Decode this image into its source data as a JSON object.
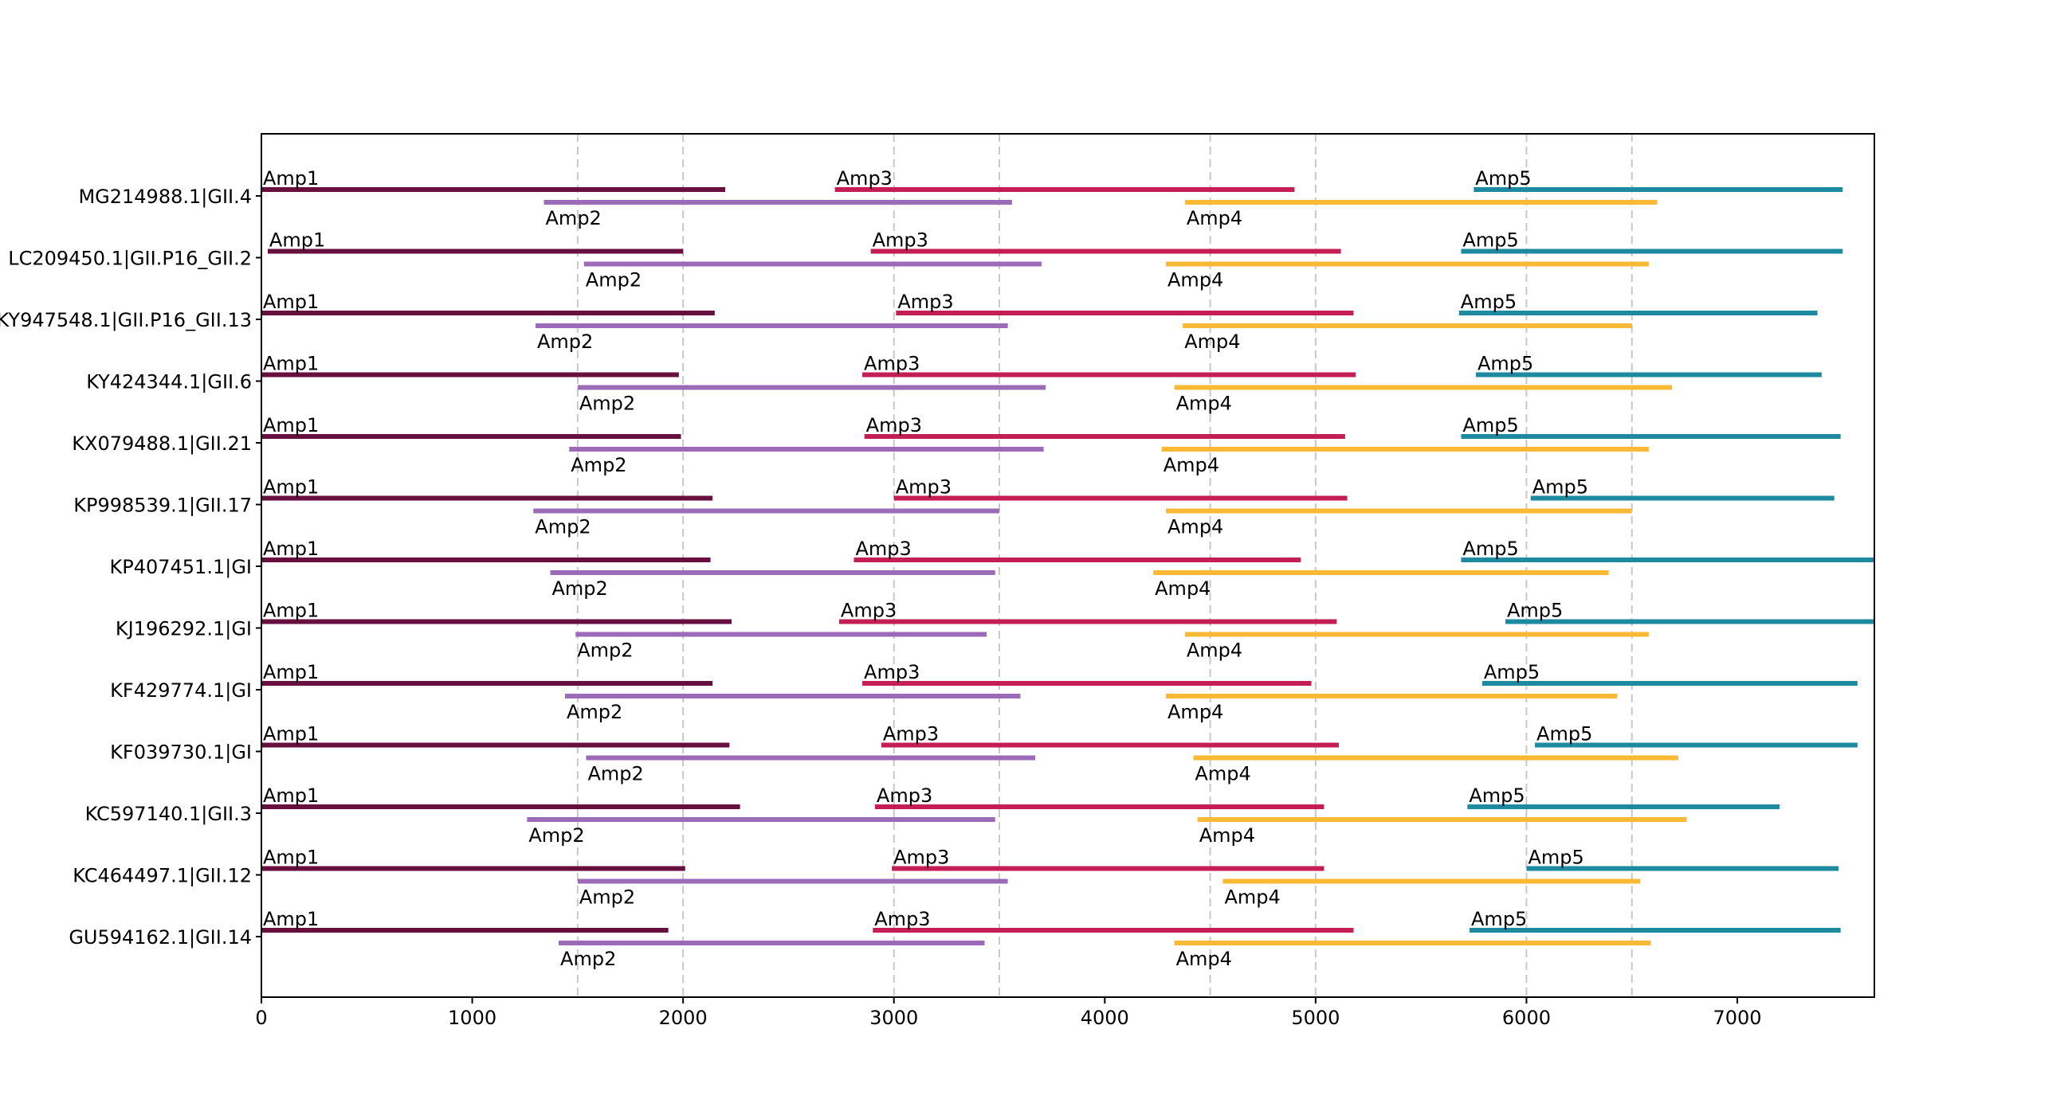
{
  "chart_data": {
    "type": "gantt",
    "xlim": [
      0,
      7650
    ],
    "x_ticks": [
      0,
      1000,
      2000,
      3000,
      4000,
      5000,
      6000,
      7000
    ],
    "vgrid": [
      1500,
      2000,
      3000,
      3500,
      4500,
      5000,
      6000,
      6500
    ],
    "grid": "vertical dashed",
    "amplicon_colors": {
      "Amp1": "#67103f",
      "Amp2": "#9c6bb8",
      "Amp3": "#c51e55",
      "Amp4": "#f9b935",
      "Amp5": "#1e8aa0"
    },
    "rows": [
      {
        "label": "MG214988.1|GII.4",
        "amplicons": [
          {
            "name": "Amp1",
            "start": 0,
            "end": 2200
          },
          {
            "name": "Amp2",
            "start": 1340,
            "end": 3560
          },
          {
            "name": "Amp3",
            "start": 2720,
            "end": 4900
          },
          {
            "name": "Amp4",
            "start": 4380,
            "end": 6620
          },
          {
            "name": "Amp5",
            "start": 5750,
            "end": 7500
          }
        ]
      },
      {
        "label": "LC209450.1|GII.P16_GII.2",
        "amplicons": [
          {
            "name": "Amp1",
            "start": 30,
            "end": 2000
          },
          {
            "name": "Amp2",
            "start": 1530,
            "end": 3700
          },
          {
            "name": "Amp3",
            "start": 2890,
            "end": 5120
          },
          {
            "name": "Amp4",
            "start": 4290,
            "end": 6580
          },
          {
            "name": "Amp5",
            "start": 5690,
            "end": 7500
          }
        ]
      },
      {
        "label": "KY947548.1|GII.P16_GII.13",
        "amplicons": [
          {
            "name": "Amp1",
            "start": 0,
            "end": 2150
          },
          {
            "name": "Amp2",
            "start": 1300,
            "end": 3540
          },
          {
            "name": "Amp3",
            "start": 3010,
            "end": 5180
          },
          {
            "name": "Amp4",
            "start": 4370,
            "end": 6500
          },
          {
            "name": "Amp5",
            "start": 5680,
            "end": 7380
          }
        ]
      },
      {
        "label": "KY424344.1|GII.6",
        "amplicons": [
          {
            "name": "Amp1",
            "start": 0,
            "end": 1980
          },
          {
            "name": "Amp2",
            "start": 1500,
            "end": 3720
          },
          {
            "name": "Amp3",
            "start": 2850,
            "end": 5190
          },
          {
            "name": "Amp4",
            "start": 4330,
            "end": 6690
          },
          {
            "name": "Amp5",
            "start": 5760,
            "end": 7400
          }
        ]
      },
      {
        "label": "KX079488.1|GII.21",
        "amplicons": [
          {
            "name": "Amp1",
            "start": 0,
            "end": 1990
          },
          {
            "name": "Amp2",
            "start": 1460,
            "end": 3710
          },
          {
            "name": "Amp3",
            "start": 2860,
            "end": 5140
          },
          {
            "name": "Amp4",
            "start": 4270,
            "end": 6580
          },
          {
            "name": "Amp5",
            "start": 5690,
            "end": 7490
          }
        ]
      },
      {
        "label": "KP998539.1|GII.17",
        "amplicons": [
          {
            "name": "Amp1",
            "start": 0,
            "end": 2140
          },
          {
            "name": "Amp2",
            "start": 1290,
            "end": 3500
          },
          {
            "name": "Amp3",
            "start": 3000,
            "end": 5150
          },
          {
            "name": "Amp4",
            "start": 4290,
            "end": 6500
          },
          {
            "name": "Amp5",
            "start": 6020,
            "end": 7460
          }
        ]
      },
      {
        "label": "KP407451.1|GI",
        "amplicons": [
          {
            "name": "Amp1",
            "start": 0,
            "end": 2130
          },
          {
            "name": "Amp2",
            "start": 1370,
            "end": 3480
          },
          {
            "name": "Amp3",
            "start": 2810,
            "end": 4930
          },
          {
            "name": "Amp4",
            "start": 4230,
            "end": 6390
          },
          {
            "name": "Amp5",
            "start": 5690,
            "end": 7650
          }
        ]
      },
      {
        "label": "KJ196292.1|GI",
        "amplicons": [
          {
            "name": "Amp1",
            "start": 0,
            "end": 2230
          },
          {
            "name": "Amp2",
            "start": 1490,
            "end": 3440
          },
          {
            "name": "Amp3",
            "start": 2740,
            "end": 5100
          },
          {
            "name": "Amp4",
            "start": 4380,
            "end": 6580
          },
          {
            "name": "Amp5",
            "start": 5900,
            "end": 7650
          }
        ]
      },
      {
        "label": "KF429774.1|GI",
        "amplicons": [
          {
            "name": "Amp1",
            "start": 0,
            "end": 2140
          },
          {
            "name": "Amp2",
            "start": 1440,
            "end": 3600
          },
          {
            "name": "Amp3",
            "start": 2850,
            "end": 4980
          },
          {
            "name": "Amp4",
            "start": 4290,
            "end": 6430
          },
          {
            "name": "Amp5",
            "start": 5790,
            "end": 7570
          }
        ]
      },
      {
        "label": "KF039730.1|GI",
        "amplicons": [
          {
            "name": "Amp1",
            "start": 0,
            "end": 2220
          },
          {
            "name": "Amp2",
            "start": 1540,
            "end": 3670
          },
          {
            "name": "Amp3",
            "start": 2940,
            "end": 5110
          },
          {
            "name": "Amp4",
            "start": 4420,
            "end": 6720
          },
          {
            "name": "Amp5",
            "start": 6040,
            "end": 7570
          }
        ]
      },
      {
        "label": "KC597140.1|GII.3",
        "amplicons": [
          {
            "name": "Amp1",
            "start": 0,
            "end": 2270
          },
          {
            "name": "Amp2",
            "start": 1260,
            "end": 3480
          },
          {
            "name": "Amp3",
            "start": 2910,
            "end": 5040
          },
          {
            "name": "Amp4",
            "start": 4440,
            "end": 6760
          },
          {
            "name": "Amp5",
            "start": 5720,
            "end": 7200
          }
        ]
      },
      {
        "label": "KC464497.1|GII.12",
        "amplicons": [
          {
            "name": "Amp1",
            "start": 0,
            "end": 2010
          },
          {
            "name": "Amp2",
            "start": 1500,
            "end": 3540
          },
          {
            "name": "Amp3",
            "start": 2990,
            "end": 5040
          },
          {
            "name": "Amp4",
            "start": 4560,
            "end": 6540
          },
          {
            "name": "Amp5",
            "start": 6000,
            "end": 7480
          }
        ]
      },
      {
        "label": "GU594162.1|GII.14",
        "amplicons": [
          {
            "name": "Amp1",
            "start": 0,
            "end": 1930
          },
          {
            "name": "Amp2",
            "start": 1410,
            "end": 3430
          },
          {
            "name": "Amp3",
            "start": 2900,
            "end": 5180
          },
          {
            "name": "Amp4",
            "start": 4330,
            "end": 6590
          },
          {
            "name": "Amp5",
            "start": 5730,
            "end": 7490
          }
        ]
      }
    ]
  }
}
